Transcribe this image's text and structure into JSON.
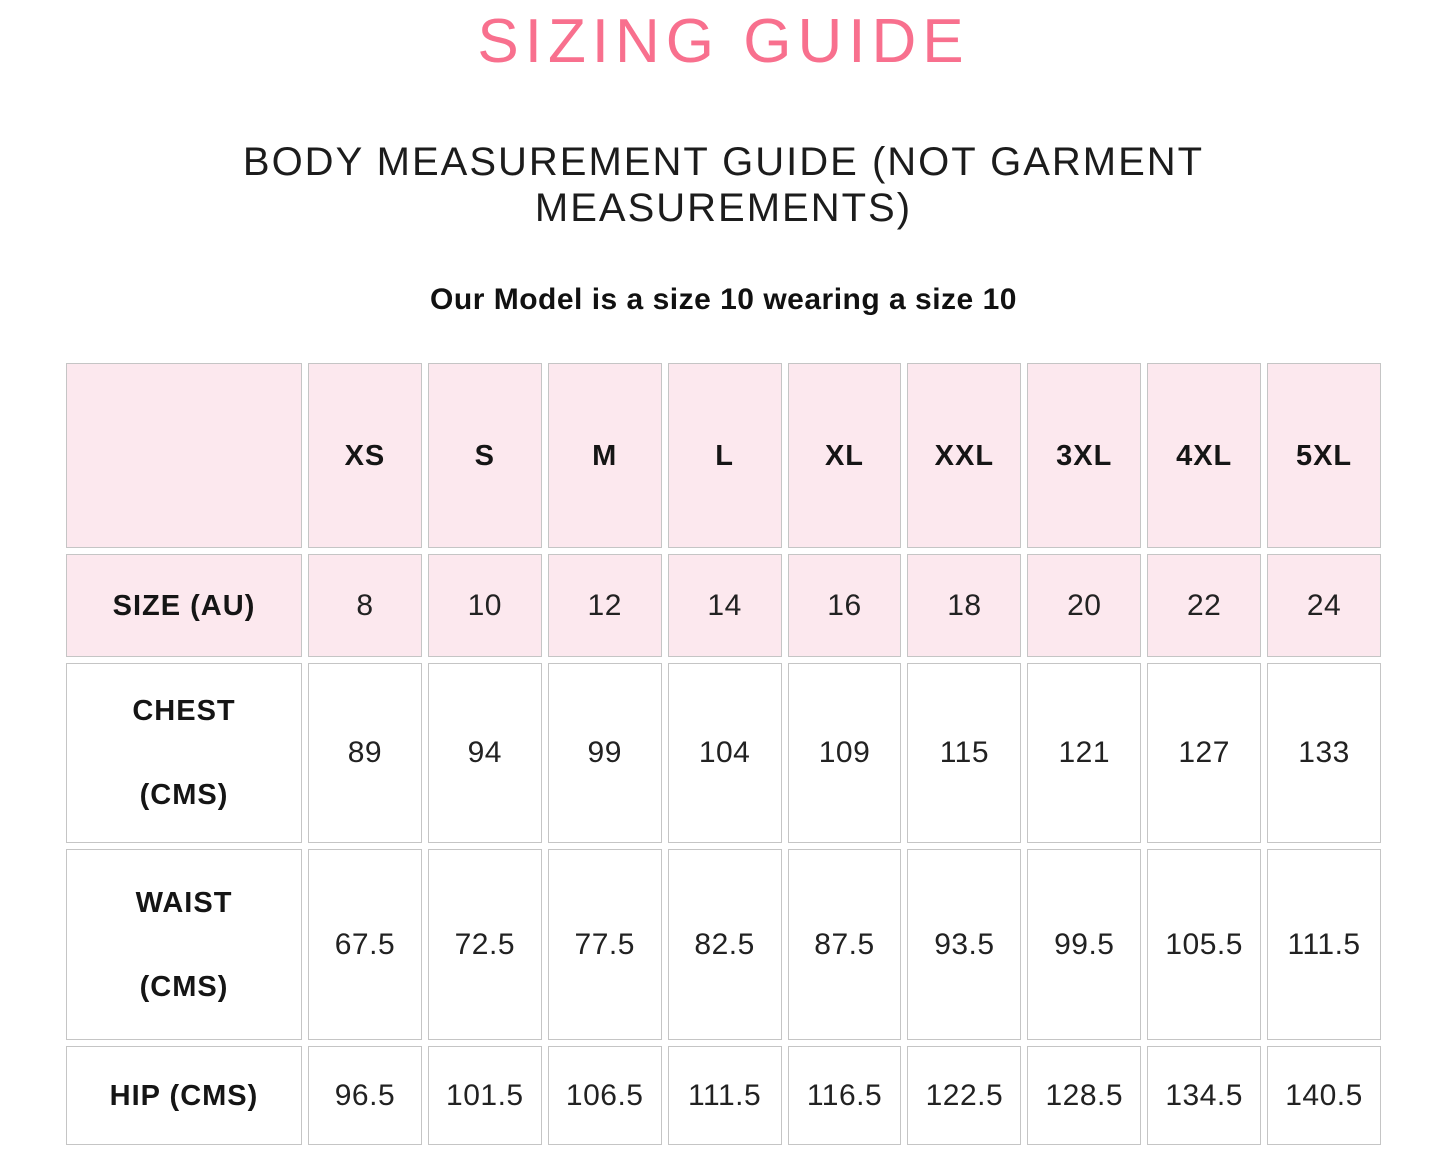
{
  "page": {
    "title": "SIZING GUIDE",
    "subtitle": "BODY MEASUREMENT GUIDE (NOT GARMENT MEASUREMENTS)",
    "model_note": "Our Model is a size 10 wearing a size 10"
  },
  "colors": {
    "accent_pink": "#f8708e",
    "highlight_pink": "#fce8ee",
    "cell_border": "#c5c5c5"
  },
  "size_table": {
    "corner_label": "",
    "size_headers": [
      "XS",
      "S",
      "M",
      "L",
      "XL",
      "XXL",
      "3XL",
      "4XL",
      "5XL"
    ],
    "rows": [
      {
        "label": "SIZE (AU)",
        "highlight": true,
        "values": [
          "8",
          "10",
          "12",
          "14",
          "16",
          "18",
          "20",
          "22",
          "24"
        ]
      },
      {
        "label": "CHEST\n(CMS)",
        "highlight": false,
        "values": [
          "89",
          "94",
          "99",
          "104",
          "109",
          "115",
          "121",
          "127",
          "133"
        ]
      },
      {
        "label": "WAIST\n(CMS)",
        "highlight": false,
        "values": [
          "67.5",
          "72.5",
          "77.5",
          "82.5",
          "87.5",
          "93.5",
          "99.5",
          "105.5",
          "111.5"
        ]
      },
      {
        "label": "HIP (CMS)",
        "highlight": false,
        "values": [
          "96.5",
          "101.5",
          "106.5",
          "111.5",
          "116.5",
          "122.5",
          "128.5",
          "134.5",
          "140.5"
        ]
      }
    ]
  }
}
